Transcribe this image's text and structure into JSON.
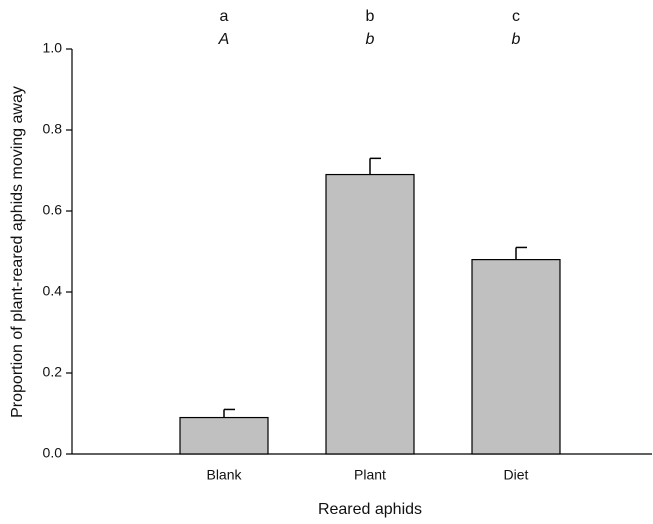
{
  "chart_data": {
    "type": "bar",
    "categories": [
      "Blank",
      "Plant",
      "Diet"
    ],
    "values": [
      0.09,
      0.69,
      0.48
    ],
    "errors": [
      0.02,
      0.04,
      0.03
    ],
    "color": "#c0c0c0",
    "x_label": "Reared aphids",
    "y_label": "Proportion of plant-reared aphids moving away",
    "letters_top": [
      "a",
      "b",
      "c"
    ],
    "letters_italic": [
      "A",
      "b",
      "b"
    ],
    "ylim": [
      0,
      1.0
    ],
    "yticks": [
      {
        "value": 0,
        "label": "0.0"
      },
      0.2,
      0.4,
      0.6,
      0.8,
      {
        "value": 1.0,
        "label": "1.0"
      }
    ],
    "grid": false
  }
}
